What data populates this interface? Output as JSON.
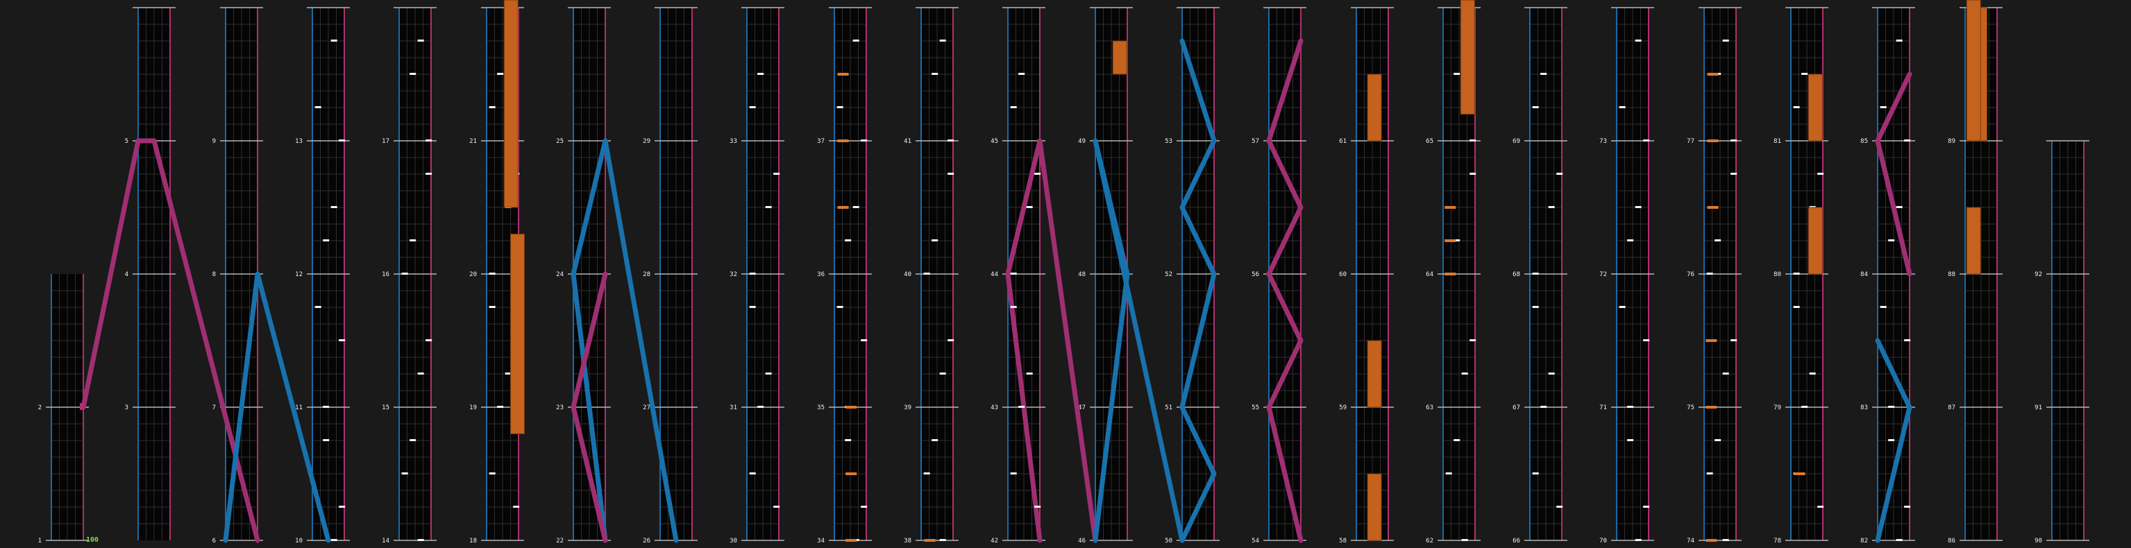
{
  "chart": {
    "bpm": "100",
    "first_measure": 1,
    "last_measure": 92,
    "measures_per_column": 4,
    "first_column_measures": 2,
    "last_column_measures": 2
  },
  "colors": {
    "background": "#1a1a1a",
    "lane": "#050505",
    "left_edge": "#1a6aa6",
    "right_edge": "#b0306e",
    "slide_left": "#1872ad",
    "slide_right": "#a02f72",
    "hold": "#c4621e",
    "tap": "#f3f3f3"
  },
  "slides": [
    {
      "color": "pink",
      "points": [
        [
          3,
          0.0
        ],
        [
          5,
          0.0
        ],
        [
          5,
          0.5
        ]
      ],
      "lanes": [
        [
          1.0,
          0.0
        ],
        [
          0.0,
          1.0
        ]
      ]
    },
    {
      "color": "pink",
      "pts": [
        [
          2,
          1.0
        ],
        [
          5,
          0.0
        ],
        [
          5,
          0.5
        ],
        [
          6,
          1.0
        ]
      ]
    },
    {
      "color": "blue",
      "pts": [
        [
          6,
          0.0
        ],
        [
          8,
          1.0
        ],
        [
          10,
          0.5
        ]
      ]
    },
    {
      "color": "blue",
      "pts": [
        [
          22,
          1.0
        ],
        [
          24,
          0.0
        ],
        [
          25,
          1.0
        ],
        [
          26,
          0.5
        ]
      ]
    },
    {
      "color": "pink",
      "pts": [
        [
          22,
          1.0
        ],
        [
          23,
          0.0
        ],
        [
          24,
          1.0
        ]
      ]
    },
    {
      "color": "pink",
      "pts": [
        [
          42,
          1.0
        ],
        [
          44,
          0.0
        ],
        [
          45,
          1.0
        ],
        [
          46,
          0.0
        ]
      ]
    },
    {
      "color": "blue",
      "pts": [
        [
          46,
          0.0
        ],
        [
          48,
          1.0
        ],
        [
          49,
          0.0
        ],
        [
          50,
          0.0
        ]
      ]
    },
    {
      "color": "blue",
      "pts": [
        [
          50,
          0.0
        ],
        [
          50.5,
          1.0
        ],
        [
          51,
          0.0
        ],
        [
          52,
          1.0
        ],
        [
          52.5,
          0.0
        ],
        [
          53,
          1.0
        ],
        [
          53.75,
          0.0
        ]
      ]
    },
    {
      "color": "pink",
      "pts": [
        [
          54,
          1.0
        ],
        [
          55,
          0.0
        ],
        [
          55.5,
          1.0
        ],
        [
          56,
          0.0
        ],
        [
          56.5,
          1.0
        ],
        [
          57,
          0.0
        ],
        [
          57.75,
          1.0
        ]
      ]
    },
    {
      "color": "blue",
      "pts": [
        [
          82,
          0.0
        ],
        [
          83,
          1.0
        ],
        [
          83.5,
          0.0
        ]
      ]
    },
    {
      "color": "pink",
      "pts": [
        [
          84,
          1.0
        ],
        [
          85,
          0.0
        ],
        [
          85.5,
          1.0
        ]
      ]
    }
  ]
}
